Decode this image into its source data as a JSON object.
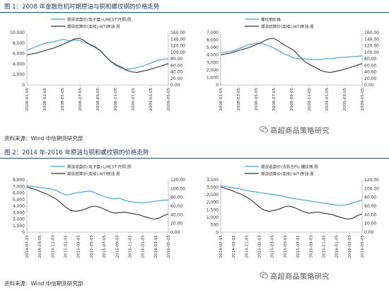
{
  "figure1": {
    "caption": "图 1：2008 年金融危机时期原油与铜和螺纹钢的价格走势",
    "source": "资料来源：Wind 中信期货研究部"
  },
  "figure2": {
    "caption": "图 2：2014 年-2016 年原油与铜和螺纹钢的价格走势",
    "source": "资料来源：Wind 中信期货研究部"
  },
  "watermark": {
    "text": "高超商品策略研究",
    "icon": "wechat-icon"
  },
  "colors": {
    "series_light": "#3aa0d8",
    "series_dark": "#333333",
    "caption_rule": "#1f4e79"
  },
  "chart_data": [
    {
      "id": "c1",
      "type": "line",
      "legend": [
        "期货收盘价(电子盘):LME3个月铜:周",
        "期货结算价(连续):WTI原油:周"
      ],
      "left_ticks": [
        "10,000",
        "8,000",
        "6,000",
        "4,000",
        "2,000",
        "0"
      ],
      "right_ticks": [
        "160.00",
        "140.00",
        "120.00",
        "100.00",
        "80.00",
        "60.00",
        "40.00",
        "20.00",
        "0.00"
      ],
      "x_ticks": [
        "2008-01-05",
        "2008-03-05",
        "2008-05-05",
        "2008-07-05",
        "2008-09-05",
        "2008-11-05",
        "2009-01-05",
        "2009-03-05",
        "2009-05-05"
      ],
      "ylim_left": [
        0,
        10000
      ],
      "ylim_right": [
        0,
        160
      ],
      "series": [
        {
          "name": "期货收盘价(电子盘):LME3个月铜:周",
          "axis": "left",
          "color": "#3aa0d8",
          "values": [
            6700,
            7000,
            7400,
            7800,
            8100,
            8200,
            8500,
            8700,
            8400,
            8600,
            8500,
            8100,
            7800,
            7400,
            6500,
            5500,
            4500,
            3700,
            3200,
            3000,
            3100,
            3300,
            3600,
            3900,
            4300,
            4700,
            4900,
            5000
          ]
        },
        {
          "name": "期货结算价(连续):WTI原油:周",
          "axis": "right",
          "color": "#333333",
          "values": [
            92,
            95,
            98,
            103,
            108,
            112,
            118,
            125,
            132,
            140,
            143,
            135,
            123,
            115,
            105,
            88,
            72,
            62,
            55,
            45,
            40,
            38,
            42,
            45,
            50,
            55,
            60,
            65
          ]
        }
      ]
    },
    {
      "id": "c2",
      "type": "line",
      "legend": [
        "螺纹钢价格",
        "期货结算价(连续):WTI原油:周"
      ],
      "left_ticks": [
        "7,000",
        "6,000",
        "5,000",
        "4,000",
        "3,000",
        "2,000",
        "1,000",
        "0"
      ],
      "right_ticks": [
        "160.00",
        "140.00",
        "120.00",
        "100.00",
        "80.00",
        "60.00",
        "40.00",
        "20.00",
        "0.00"
      ],
      "x_ticks": [
        "2008-01-05",
        "2008-03-05",
        "2008-05-05",
        "2008-07-05",
        "2008-09-05",
        "2008-11-05",
        "2009-01-05",
        "2009-03-05",
        "2009-05-05"
      ],
      "ylim_left": [
        0,
        7000
      ],
      "ylim_right": [
        0,
        160
      ],
      "series": [
        {
          "name": "螺纹钢价格",
          "axis": "left",
          "color": "#3aa0d8",
          "values": [
            4300,
            4400,
            4500,
            4700,
            5000,
            5300,
            5500,
            5600,
            5500,
            5300,
            5000,
            4600,
            4200,
            3900,
            3600,
            3500,
            3500,
            3400,
            3400,
            3400,
            3500,
            3500,
            3600,
            3700,
            3700,
            3800,
            3800,
            3900
          ]
        },
        {
          "name": "期货结算价(连续):WTI原油:周",
          "axis": "right",
          "color": "#333333",
          "values": [
            92,
            95,
            98,
            103,
            108,
            112,
            118,
            125,
            132,
            140,
            143,
            135,
            123,
            115,
            105,
            88,
            72,
            62,
            55,
            45,
            40,
            38,
            42,
            45,
            50,
            55,
            60,
            65
          ]
        }
      ]
    },
    {
      "id": "c3",
      "type": "line",
      "legend": [
        "期货收盘价(电子盘):LME3个月铜:周",
        "期货结算价(连续):WTI原油:周"
      ],
      "left_ticks": [
        "8,000",
        "7,000",
        "6,000",
        "5,000",
        "4,000",
        "3,000",
        "2,000",
        "1,000",
        "0"
      ],
      "right_ticks": [
        "120.00",
        "100.00",
        "80.00",
        "60.00",
        "40.00",
        "20.00",
        "0.00"
      ],
      "x_ticks": [
        "2014-07-05",
        "2014-09-05",
        "2014-11-05",
        "2015-01-05",
        "2015-03-05",
        "2015-05-05",
        "2015-07-05",
        "2015-09-05",
        "2015-11-05",
        "2016-01-05",
        "2016-03-05",
        "2016-05-05"
      ],
      "ylim_left": [
        0,
        8000
      ],
      "ylim_right": [
        0,
        120
      ],
      "series": [
        {
          "name": "期货收盘价(电子盘):LME3个月铜:周",
          "axis": "left",
          "color": "#3aa0d8",
          "values": [
            7100,
            7000,
            6900,
            6800,
            6700,
            6600,
            6400,
            6000,
            5700,
            5800,
            6000,
            6100,
            6200,
            6300,
            6000,
            5700,
            5400,
            5200,
            5100,
            5200,
            4900,
            4700,
            4600,
            4500,
            4500,
            4600,
            4700,
            4800,
            4900,
            4900
          ]
        },
        {
          "name": "期货结算价(连续):WTI原油:周",
          "axis": "right",
          "color": "#333333",
          "values": [
            104,
            100,
            97,
            92,
            88,
            82,
            76,
            67,
            57,
            50,
            48,
            50,
            53,
            58,
            60,
            57,
            52,
            47,
            44,
            45,
            46,
            44,
            42,
            40,
            36,
            33,
            30,
            32,
            38,
            42
          ]
        }
      ]
    },
    {
      "id": "c4",
      "type": "line",
      "legend": [
        "期货收盘价(活跃合约):螺纹钢:周",
        "期货结算价(连续):WTI原油:周"
      ],
      "left_ticks": [
        "3,500",
        "3,000",
        "2,500",
        "2,000",
        "1,500",
        "1,000",
        "500",
        "0"
      ],
      "right_ticks": [
        "120.00",
        "100.00",
        "80.00",
        "60.00",
        "40.00",
        "20.00",
        "0.00"
      ],
      "x_ticks": [
        "2014-07-05",
        "2014-09-05",
        "2014-11-05",
        "2015-01-05",
        "2015-03-05",
        "2015-05-05",
        "2015-07-05",
        "2015-09-05",
        "2015-11-05",
        "2016-01-05",
        "2016-03-05",
        "2016-05-05"
      ],
      "ylim_left": [
        0,
        3500
      ],
      "ylim_right": [
        0,
        120
      ],
      "series": [
        {
          "name": "期货收盘价(活跃合约):螺纹钢:周",
          "axis": "left",
          "color": "#3aa0d8",
          "values": [
            3100,
            3050,
            3000,
            2950,
            2900,
            2800,
            2750,
            2700,
            2650,
            2600,
            2550,
            2500,
            2450,
            2400,
            2300,
            2250,
            2200,
            2150,
            2100,
            2050,
            2000,
            1950,
            1900,
            1850,
            1800,
            1800,
            1850,
            1950,
            2050,
            2150
          ]
        },
        {
          "name": "期货结算价(连续):WTI原油:周",
          "axis": "right",
          "color": "#333333",
          "values": [
            104,
            100,
            97,
            92,
            88,
            82,
            76,
            67,
            57,
            50,
            48,
            50,
            53,
            58,
            60,
            57,
            52,
            47,
            44,
            45,
            46,
            44,
            42,
            40,
            36,
            33,
            30,
            32,
            38,
            42
          ]
        }
      ]
    }
  ]
}
